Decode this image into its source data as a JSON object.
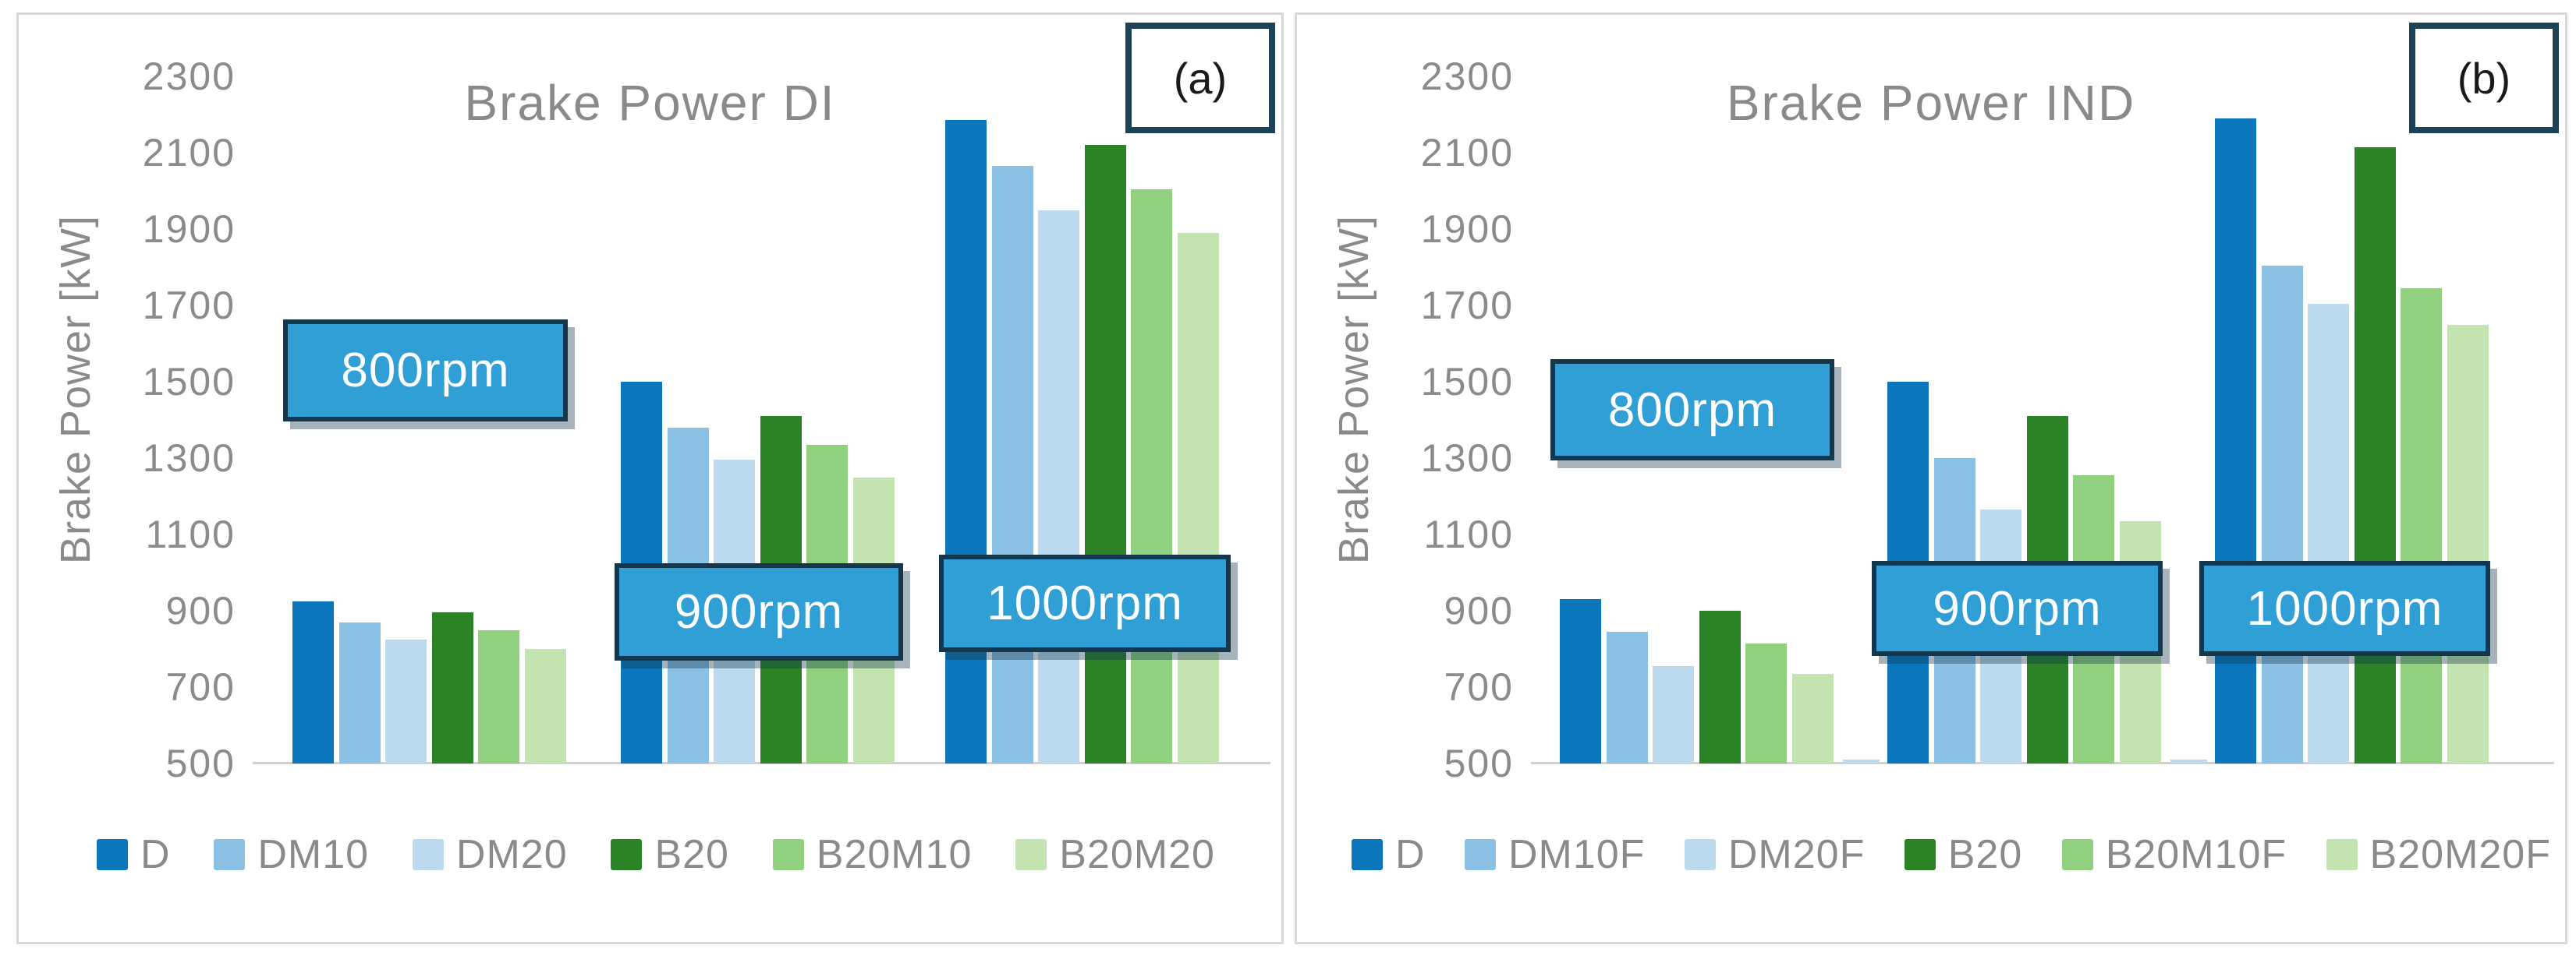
{
  "style_colors": {
    "annotation_fill": "#2f9fd6",
    "annotation_border": "#14374d",
    "annotation_text": "#ffffff",
    "axis_text": "#8a8a8a",
    "panel_border": "#d7d7d7",
    "corner_box_border": "#1c4257",
    "baseline": "#d0d0d0"
  },
  "chart_data": [
    {
      "type": "bar",
      "panel_label": "(a)",
      "title": "Brake Power DI",
      "xlabel": "",
      "ylabel": "Brake Power [kW]",
      "ylim": [
        500,
        2300
      ],
      "ytick_step": 200,
      "yticks": [
        2300,
        2100,
        1900,
        1700,
        1500,
        1300,
        1100,
        900,
        700,
        500
      ],
      "grid": false,
      "legend_position": "bottom",
      "categories": [
        "800rpm",
        "900rpm",
        "1000rpm"
      ],
      "series": [
        {
          "name": "D",
          "color": "#0b76bc",
          "values": [
            925,
            1500,
            2185
          ]
        },
        {
          "name": "DM10",
          "color": "#8bc1e4",
          "values": [
            870,
            1380,
            2065
          ]
        },
        {
          "name": "DM20",
          "color": "#bcdaee",
          "values": [
            825,
            1295,
            1950
          ]
        },
        {
          "name": "B20",
          "color": "#2b8227",
          "values": [
            895,
            1410,
            2120
          ]
        },
        {
          "name": "B20M10",
          "color": "#90d07f",
          "values": [
            850,
            1335,
            2005
          ]
        },
        {
          "name": "B20M20",
          "color": "#c3e3b1",
          "values": [
            800,
            1250,
            1890
          ]
        }
      ],
      "annotations": [
        {
          "text": "800rpm"
        },
        {
          "text": "900rpm"
        },
        {
          "text": "1000rpm"
        }
      ]
    },
    {
      "type": "bar",
      "panel_label": "(b)",
      "title": "Brake Power IND",
      "xlabel": "",
      "ylabel": "Brake Power [kW]",
      "ylim": [
        500,
        2300
      ],
      "ytick_step": 200,
      "yticks": [
        2300,
        2100,
        1900,
        1700,
        1500,
        1300,
        1100,
        900,
        700,
        500
      ],
      "grid": false,
      "legend_position": "bottom",
      "categories": [
        "800rpm",
        "900rpm",
        "1000rpm"
      ],
      "series": [
        {
          "name": "D",
          "color": "#0b76bc",
          "values": [
            930,
            1500,
            2190
          ]
        },
        {
          "name": "DM10F",
          "color": "#8bc1e4",
          "values": [
            845,
            1300,
            1805
          ]
        },
        {
          "name": "DM20F",
          "color": "#bcdaee",
          "values": [
            755,
            1165,
            1705
          ]
        },
        {
          "name": "B20",
          "color": "#2b8227",
          "values": [
            900,
            1410,
            2115
          ]
        },
        {
          "name": "B20M10F",
          "color": "#90d07f",
          "values": [
            815,
            1255,
            1745
          ]
        },
        {
          "name": "B20M20F",
          "color": "#c3e3b1",
          "values": [
            735,
            1135,
            1650
          ]
        }
      ],
      "stub_bars": [
        {
          "before_group": 1,
          "value": 510,
          "color": "#bcdaee"
        },
        {
          "before_group": 2,
          "value": 510,
          "color": "#bcdaee"
        }
      ],
      "annotations": [
        {
          "text": "800rpm"
        },
        {
          "text": "900rpm"
        },
        {
          "text": "1000rpm"
        }
      ]
    }
  ]
}
